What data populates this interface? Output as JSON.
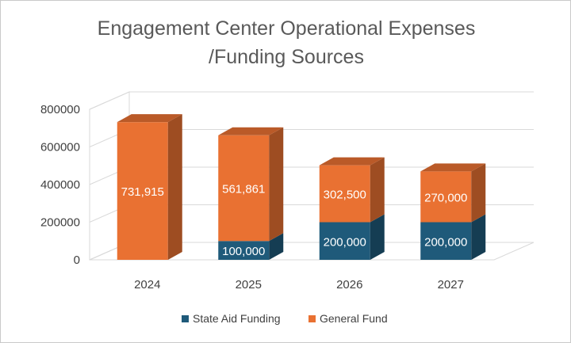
{
  "chart_data": {
    "type": "bar",
    "stacked": true,
    "three_d": true,
    "title_lines": [
      "Engagement Center Operational Expenses",
      "/Funding Sources"
    ],
    "categories": [
      "2024",
      "2025",
      "2026",
      "2027"
    ],
    "series": [
      {
        "name": "State Aid Funding",
        "values": [
          0,
          100000,
          200000,
          200000
        ],
        "labels": [
          "",
          "100,000",
          "200,000",
          "200,000"
        ],
        "color": "#1f5a7a"
      },
      {
        "name": "General Fund",
        "values": [
          731915,
          561861,
          302500,
          270000
        ],
        "labels": [
          "731,915",
          "561,861",
          "302,500",
          "270,000"
        ],
        "color": "#e97132"
      }
    ],
    "y_ticks": [
      "0",
      "200000",
      "400000",
      "600000",
      "800000"
    ],
    "ylim": [
      0,
      800000
    ],
    "grid": true,
    "legend_position": "bottom"
  }
}
